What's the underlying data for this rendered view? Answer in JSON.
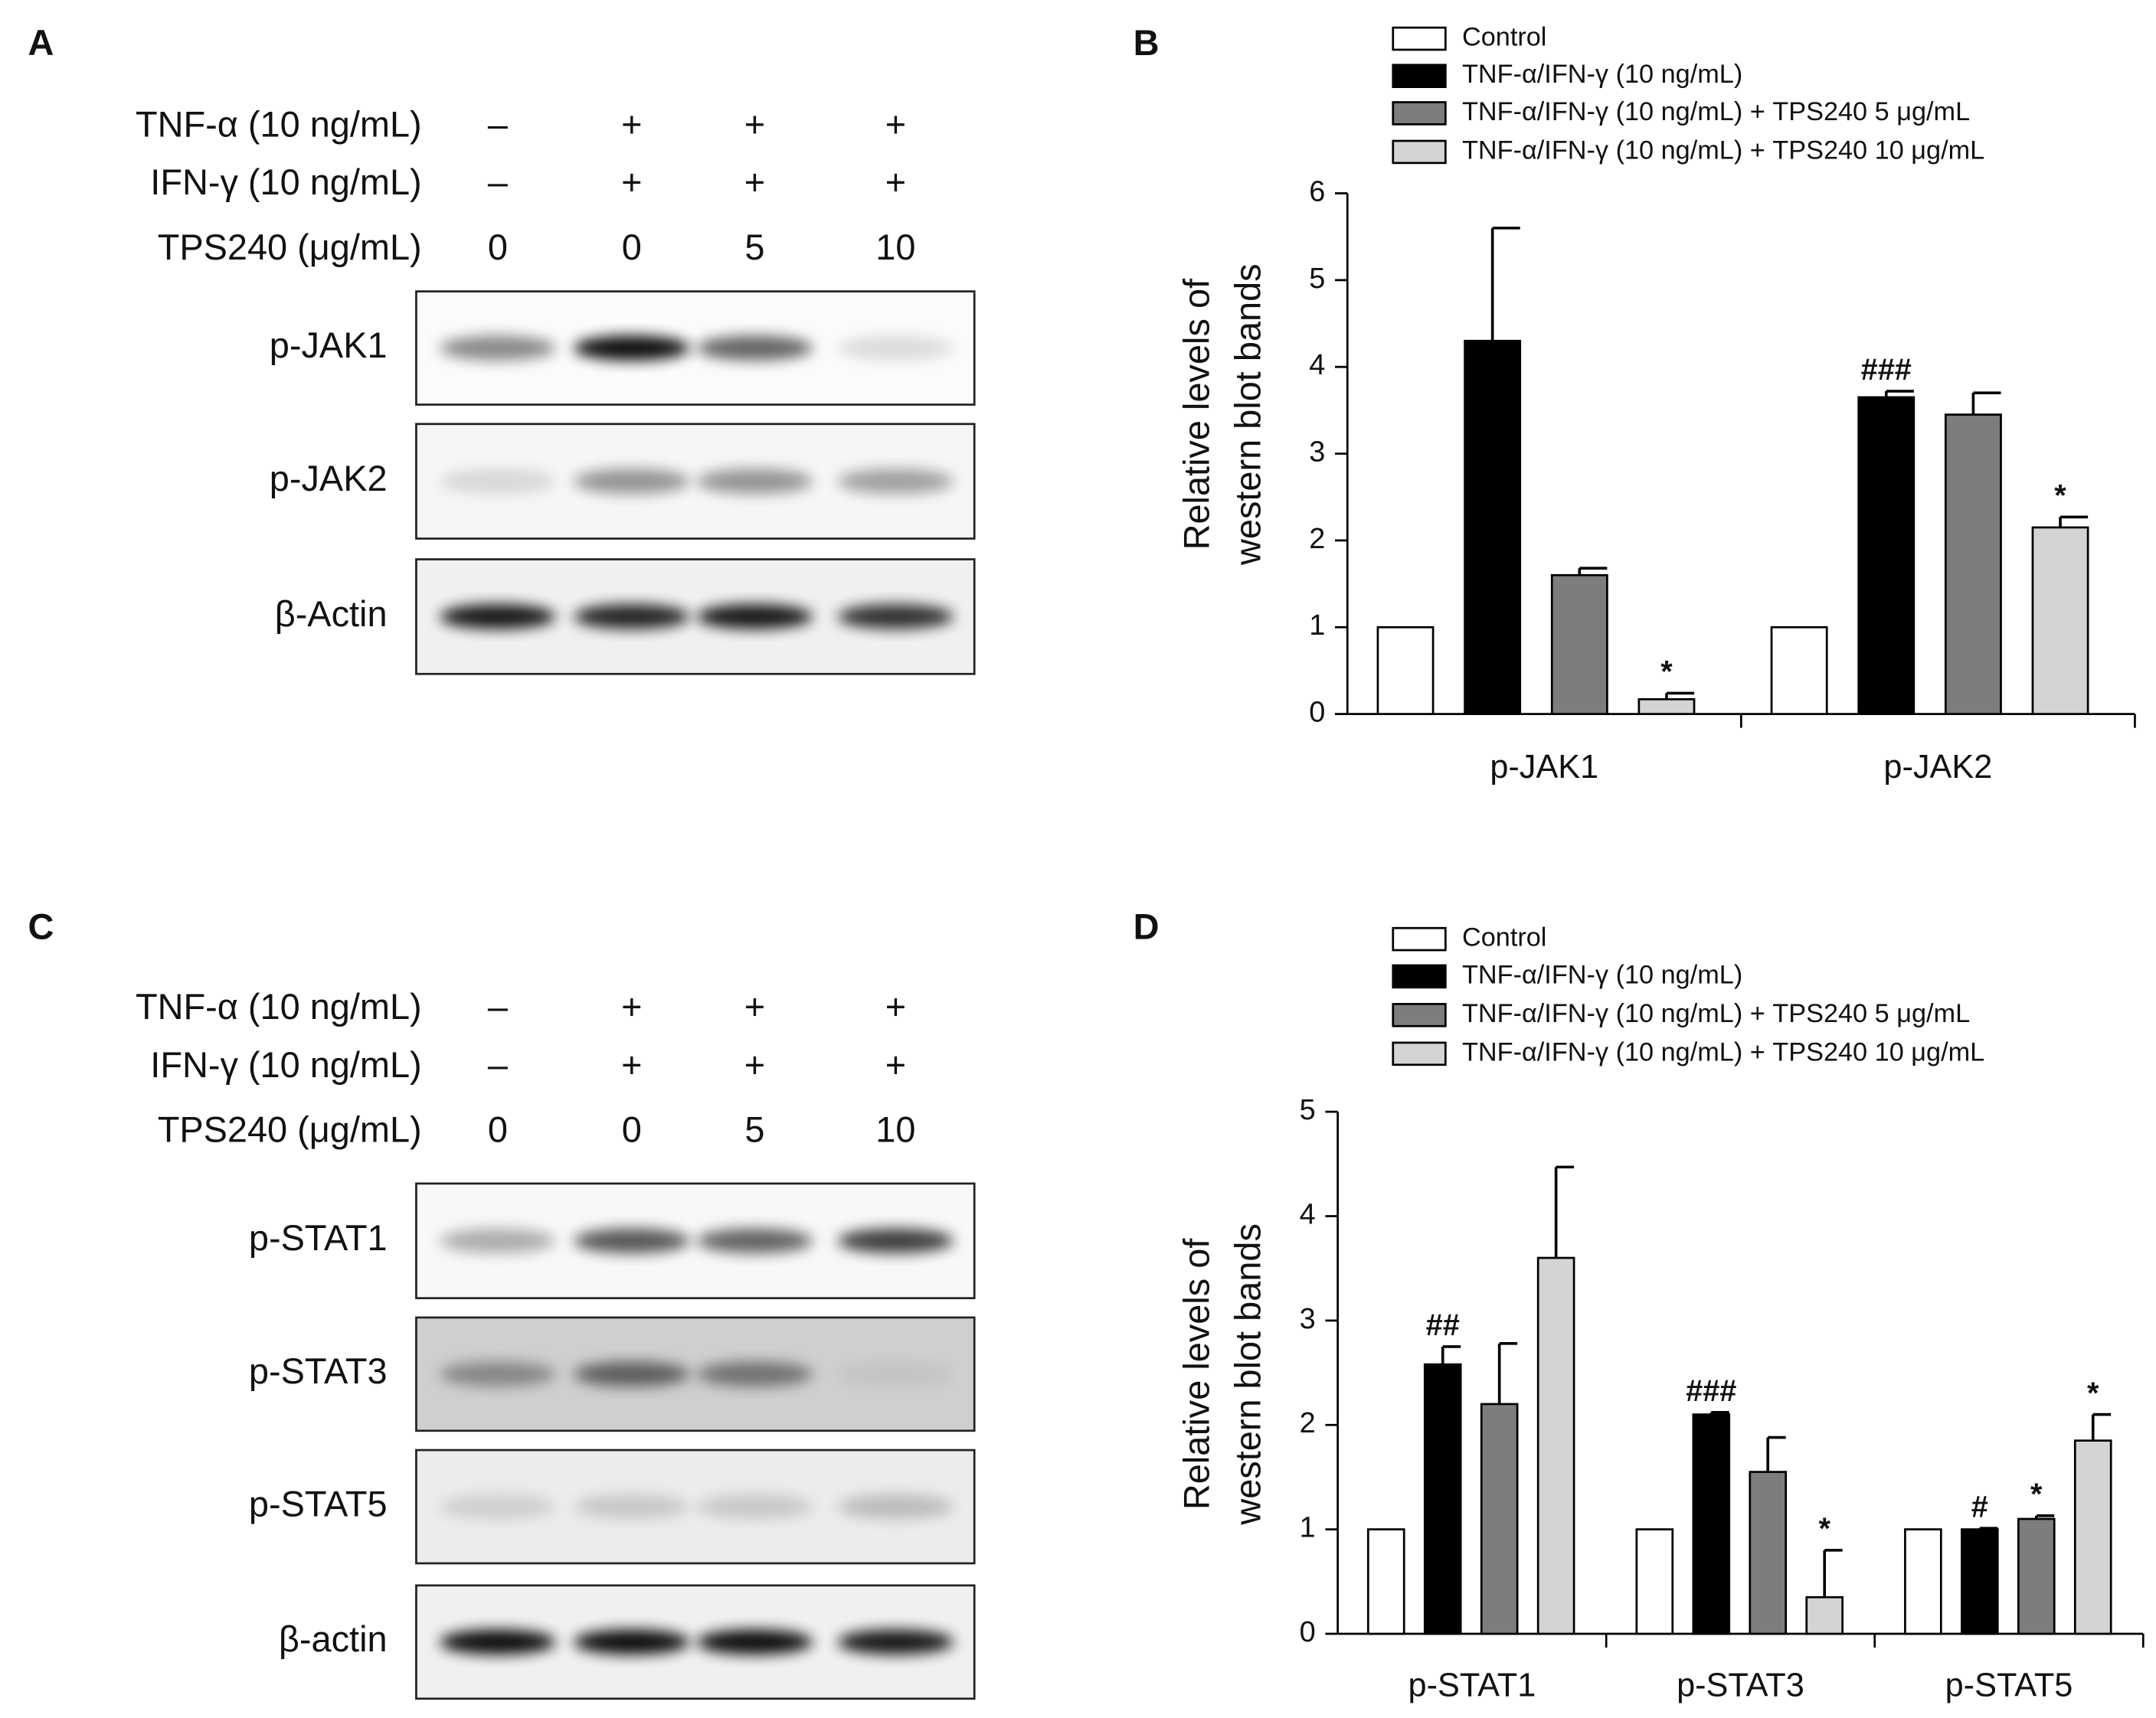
{
  "blots": [
    {
      "panel": "A",
      "treatments": [
        {
          "label": "TNF-α (10 ng/mL)",
          "lanes": [
            "–",
            "+",
            "+",
            "+"
          ]
        },
        {
          "label": "IFN-γ (10 ng/mL)",
          "lanes": [
            "–",
            "+",
            "+",
            "+"
          ]
        },
        {
          "label": "TPS240 (μg/mL)",
          "lanes": [
            "0",
            "0",
            "5",
            "10"
          ]
        }
      ],
      "bands": [
        "p-JAK1",
        "p-JAK2",
        "β-Actin"
      ]
    },
    {
      "panel": "C",
      "treatments": [
        {
          "label": "TNF-α (10 ng/mL)",
          "lanes": [
            "–",
            "+",
            "+",
            "+"
          ]
        },
        {
          "label": "IFN-γ (10 ng/mL)",
          "lanes": [
            "–",
            "+",
            "+",
            "+"
          ]
        },
        {
          "label": "TPS240 (μg/mL)",
          "lanes": [
            "0",
            "0",
            "5",
            "10"
          ]
        }
      ],
      "bands": [
        "p-STAT1",
        "p-STAT3",
        "p-STAT5",
        "β-actin"
      ]
    }
  ],
  "chart_data": [
    {
      "type": "bar",
      "panel": "B",
      "ylabel": [
        "Relative levels of",
        "western blot bands"
      ],
      "categories": [
        "p-JAK1",
        "p-JAK2"
      ],
      "ylim": [
        0,
        6
      ],
      "yticks": [
        0,
        1,
        2,
        3,
        4,
        5,
        6
      ],
      "series": [
        {
          "name": "Control",
          "color": "#ffffff",
          "values": [
            1,
            1
          ]
        },
        {
          "name": "TNF-α/IFN-γ (10 ng/mL)",
          "color": "#000000",
          "values": [
            4.3,
            3.65
          ],
          "errors": [
            1.3,
            0.07
          ],
          "labels": [
            null,
            "###"
          ]
        },
        {
          "name": "TNF-α/IFN-γ (10 ng/mL) + TPS240 5 μg/mL",
          "color": "#7d7d7d",
          "values": [
            1.6,
            3.45
          ],
          "errors": [
            0.08,
            0.25
          ]
        },
        {
          "name": "TNF-α/IFN-γ (10 ng/mL) + TPS240 10 μg/mL",
          "color": "#d4d4d4",
          "values": [
            0.17,
            2.15
          ],
          "errors": [
            0.07,
            0.12
          ],
          "labels": [
            "*",
            "*"
          ]
        }
      ]
    },
    {
      "type": "bar",
      "panel": "D",
      "ylabel": [
        "Relative levels of",
        "western blot bands"
      ],
      "categories": [
        "p-STAT1",
        "p-STAT3",
        "p-STAT5"
      ],
      "ylim": [
        0,
        5
      ],
      "yticks": [
        0,
        1,
        2,
        3,
        4,
        5
      ],
      "series": [
        {
          "name": "Control",
          "color": "#ffffff",
          "values": [
            1,
            1,
            1
          ]
        },
        {
          "name": "TNF-α/IFN-γ (10 ng/mL)",
          "color": "#000000",
          "values": [
            2.58,
            2.1,
            1.0
          ],
          "errors": [
            0.17,
            0.02,
            0.01
          ],
          "labels": [
            "##",
            "###",
            "#"
          ]
        },
        {
          "name": "TNF-α/IFN-γ (10 ng/mL) + TPS240 5 μg/mL",
          "color": "#7d7d7d",
          "values": [
            2.2,
            1.55,
            1.1
          ],
          "errors": [
            0.58,
            0.33,
            0.03
          ],
          "labels": [
            null,
            null,
            "*"
          ]
        },
        {
          "name": "TNF-α/IFN-γ (10 ng/mL) + TPS240 10 μg/mL",
          "color": "#d4d4d4",
          "values": [
            3.6,
            0.35,
            1.85
          ],
          "errors": [
            0.87,
            0.45,
            0.25
          ],
          "labels": [
            null,
            "*",
            "*"
          ]
        }
      ]
    }
  ]
}
